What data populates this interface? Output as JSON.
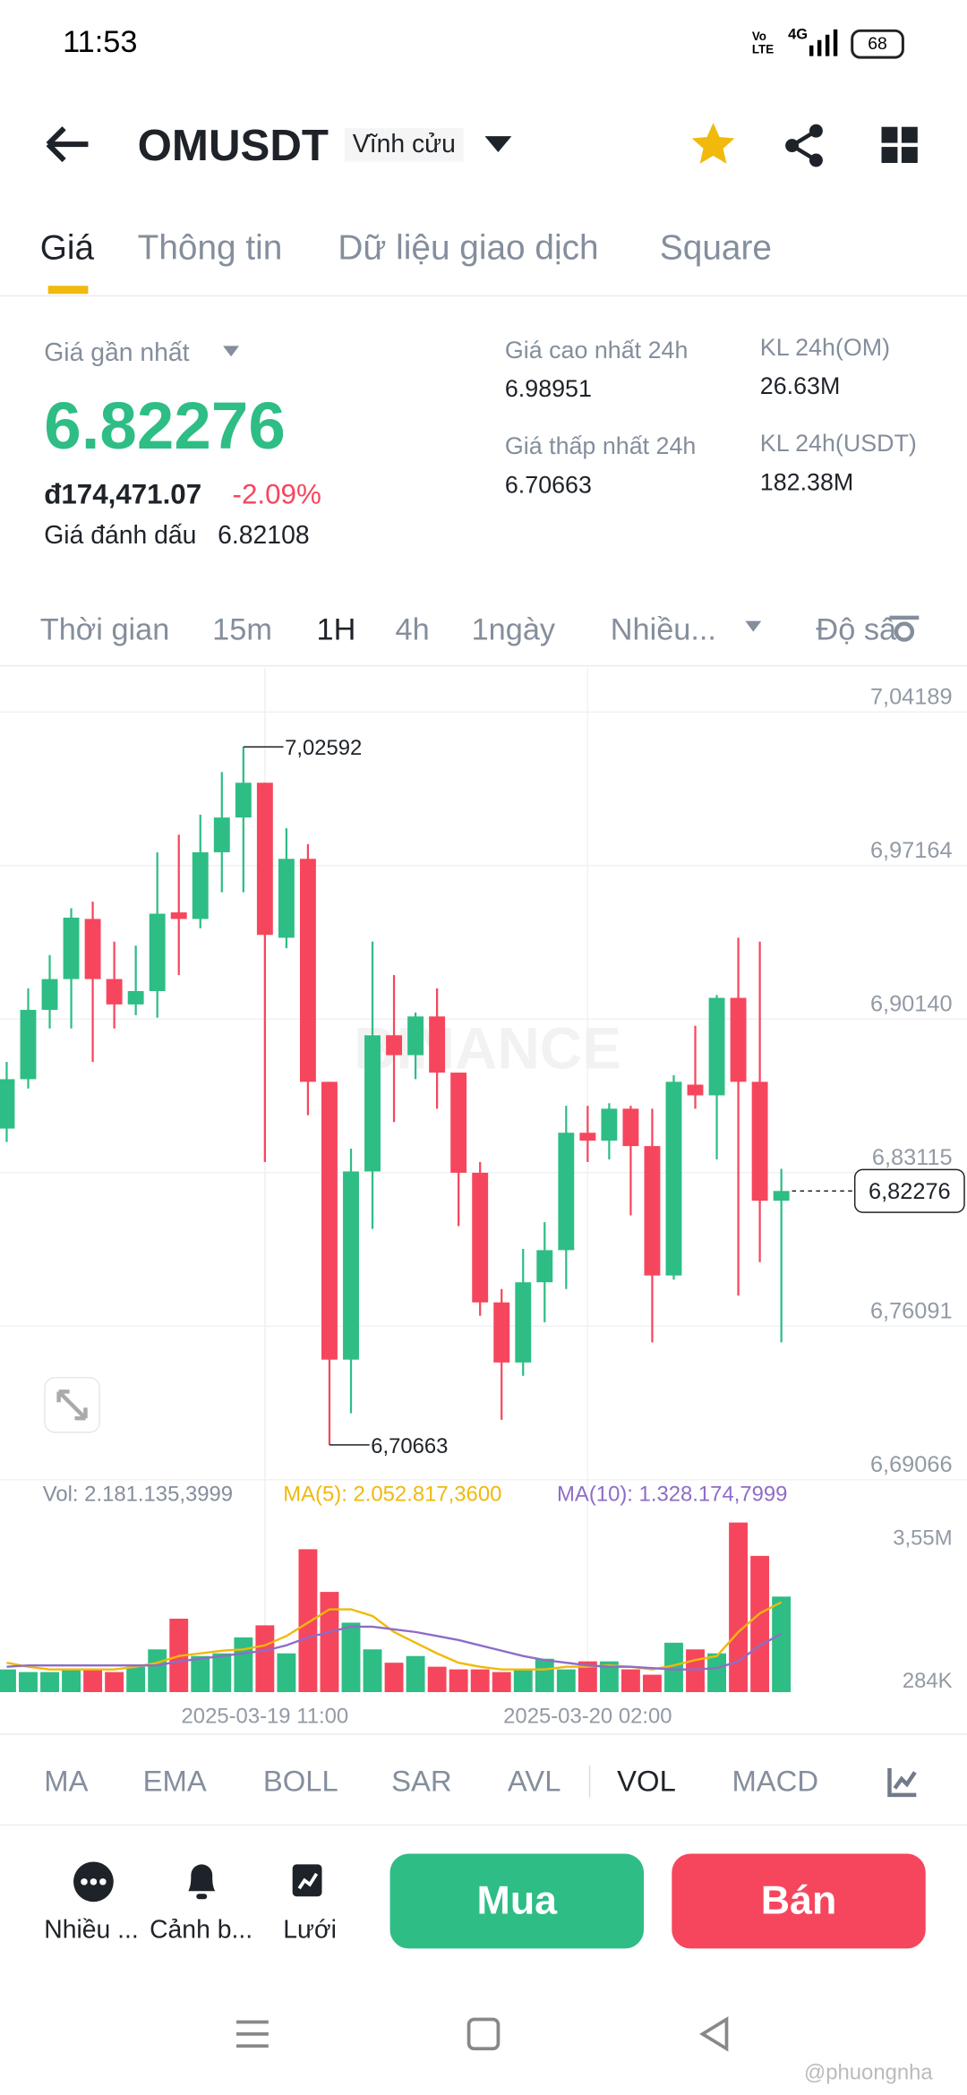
{
  "status_bar": {
    "time": "11:53",
    "volte": "Vo LTE",
    "network": "4G",
    "battery": "68"
  },
  "header": {
    "symbol": "OMUSDT",
    "contract": "Vĩnh cửu"
  },
  "tabs": [
    "Giá",
    "Thông tin",
    "Dữ liệu giao dịch",
    "Square"
  ],
  "summary": {
    "last_price_label": "Giá gần nhất",
    "last_price": "6.82276",
    "fiat_price": "đ174,471.07",
    "change": "-2.09%",
    "mark_price_label": "Giá đánh dấu",
    "mark_price": "6.82108",
    "high_label": "Giá cao nhất 24h",
    "high": "6.98951",
    "low_label": "Giá thấp nhất 24h",
    "low": "6.70663",
    "vol_om_label": "KL 24h(OM)",
    "vol_om": "26.63M",
    "vol_usdt_label": "KL 24h(USDT)",
    "vol_usdt": "182.38M"
  },
  "intervals": [
    "Thời gian",
    "15m",
    "1H",
    "4h",
    "1ngày",
    "Nhiều...",
    "Độ sâu"
  ],
  "chart_data": {
    "type": "candlestick",
    "up_color": "#2ebd85",
    "down_color": "#f6465d",
    "categories": [
      null,
      null,
      null,
      null,
      null,
      null,
      null,
      null,
      null,
      null,
      null,
      null,
      "2025-03-19 11:00",
      null,
      null,
      null,
      null,
      null,
      null,
      null,
      null,
      null,
      null,
      null,
      null,
      null,
      null,
      "2025-03-20 02:00",
      null,
      null,
      null,
      null,
      null,
      null,
      null,
      null,
      null
    ],
    "open": [
      6.8513,
      6.8739,
      6.9056,
      6.9197,
      6.9472,
      6.9197,
      6.9081,
      6.9142,
      6.9502,
      6.9472,
      6.9777,
      6.9936,
      7.0095,
      6.9386,
      6.9747,
      6.8727,
      6.7456,
      6.8317,
      6.894,
      6.8849,
      6.9026,
      6.8769,
      6.8311,
      6.7718,
      6.7443,
      6.781,
      6.7957,
      6.8494,
      6.8458,
      6.8604,
      6.8433,
      6.7841,
      6.8714,
      6.8665,
      6.9111,
      6.8727,
      6.8183
    ],
    "high": [
      6.8818,
      6.9154,
      6.9307,
      6.9521,
      6.9551,
      6.9368,
      6.935,
      6.9777,
      6.9857,
      6.9949,
      7.0144,
      7.02592,
      7.0095,
      6.9887,
      6.9814,
      6.8727,
      6.8421,
      6.9368,
      6.9215,
      6.9044,
      6.9154,
      6.8769,
      6.836,
      6.7779,
      6.7963,
      6.8085,
      6.8617,
      6.8617,
      6.8629,
      6.8617,
      6.8604,
      6.8757,
      6.8983,
      6.9124,
      6.9386,
      6.9368,
      6.8329
    ],
    "low": [
      6.8452,
      6.8696,
      6.8971,
      6.8971,
      6.8818,
      6.8971,
      6.9032,
      6.902,
      6.9215,
      6.9429,
      6.9594,
      6.9594,
      6.836,
      6.9338,
      6.8574,
      6.70663,
      6.7211,
      6.8054,
      6.8543,
      6.8739,
      6.8604,
      6.8067,
      6.7657,
      6.7181,
      6.7382,
      6.7627,
      6.7779,
      6.836,
      6.8372,
      6.8116,
      6.7535,
      6.7822,
      6.8604,
      6.8372,
      6.7749,
      6.7902,
      6.7535
    ],
    "close": [
      6.8739,
      6.9056,
      6.9197,
      6.9478,
      6.9197,
      6.9081,
      6.9142,
      6.9496,
      6.9472,
      6.9777,
      6.9936,
      7.0095,
      6.9399,
      6.9747,
      6.8727,
      6.7456,
      6.8317,
      6.894,
      6.8849,
      6.9026,
      6.8769,
      6.8311,
      6.7718,
      6.7443,
      6.781,
      6.7957,
      6.8494,
      6.8458,
      6.8604,
      6.8433,
      6.7841,
      6.8727,
      6.8665,
      6.9111,
      6.8727,
      6.8183,
      6.82276
    ],
    "ylim": [
      6.69066,
      7.0621
    ],
    "yticks": [
      {
        "value": 7.04189,
        "label": "7,04189"
      },
      {
        "value": 6.97164,
        "label": "6,97164"
      },
      {
        "value": 6.9014,
        "label": "6,90140"
      },
      {
        "value": 6.83115,
        "label": "6,83115"
      },
      {
        "value": 6.76091,
        "label": "6,76091"
      },
      {
        "value": 6.69066,
        "label": "6,69066"
      }
    ],
    "grid": true,
    "annotations": {
      "high": "7,02592",
      "low": "6,70663",
      "last_price": "6,82276"
    },
    "watermark": "BINANCE",
    "volume": {
      "values": [
        518000,
        458000,
        458000,
        518000,
        518000,
        458000,
        580000,
        976000,
        1677000,
        824000,
        885000,
        1250000,
        1525000,
        885000,
        3263000,
        2288000,
        1586000,
        976000,
        671000,
        824000,
        580000,
        519000,
        519000,
        458000,
        519000,
        763000,
        519000,
        702000,
        702000,
        519000,
        397000,
        1128000,
        976000,
        885000,
        3873000,
        3111000,
        2181135.3999
      ],
      "ma5": [
        671000,
        580000,
        519000,
        519000,
        519000,
        519000,
        580000,
        671000,
        824000,
        885000,
        946000,
        976000,
        1068000,
        1281000,
        1586000,
        1891000,
        1891000,
        1739000,
        1373000,
        1129000,
        885000,
        671000,
        580000,
        519000,
        519000,
        519000,
        580000,
        580000,
        610000,
        580000,
        519000,
        610000,
        732000,
        824000,
        1373000,
        1800000,
        2052817.36
      ],
      "ma10": [
        580000,
        610000,
        610000,
        610000,
        610000,
        610000,
        610000,
        610000,
        702000,
        763000,
        824000,
        885000,
        946000,
        1068000,
        1251000,
        1373000,
        1495000,
        1495000,
        1434000,
        1373000,
        1281000,
        1190000,
        1068000,
        946000,
        824000,
        732000,
        671000,
        610000,
        580000,
        580000,
        549000,
        519000,
        519000,
        549000,
        702000,
        1068000,
        1328174.7999
      ],
      "ma5_color": "#f0b90b",
      "ma10_color": "#8e6cc7",
      "ylim": [
        0,
        4788500
      ],
      "yticks": [
        {
          "value": 3550000,
          "label": "3,55M"
        },
        {
          "value": 284000,
          "label": "284K"
        }
      ],
      "vol_label": "Vol: 2.181.135,3999",
      "ma5_label": "MA(5): 2.052.817,3600",
      "ma10_label": "MA(10): 1.328.174,7999"
    }
  },
  "indicators": [
    "MA",
    "EMA",
    "BOLL",
    "SAR",
    "AVL",
    "VOL",
    "MACD"
  ],
  "actions": {
    "more": "Nhiều ...",
    "alert": "Cảnh b...",
    "grid": "Lưới",
    "buy": "Mua",
    "sell": "Bán"
  },
  "credit": "@phuongnha"
}
